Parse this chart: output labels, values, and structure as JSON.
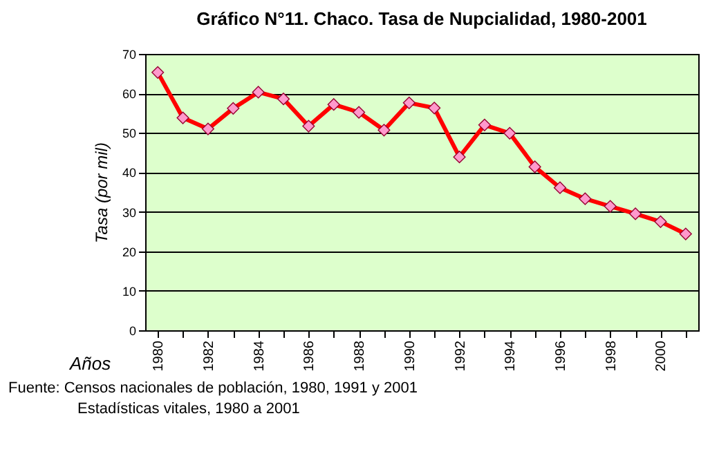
{
  "chart_data": {
    "type": "line",
    "title": "Gráfico N°11. Chaco. Tasa de Nupcialidad, 1980-2001",
    "xlabel": "Años",
    "ylabel": "Tasa (por mil)",
    "categories": [
      "1980",
      null,
      "1982",
      null,
      "1984",
      null,
      "1986",
      null,
      "1988",
      null,
      "1990",
      null,
      "1992",
      null,
      "1994",
      null,
      "1996",
      null,
      "1998",
      null,
      "2000",
      null
    ],
    "series": [
      {
        "color": "#ff0000",
        "values": [
          65.3,
          53.8,
          51,
          56.2,
          60.3,
          58.6,
          51.7,
          57.2,
          55.2,
          50.7,
          57.6,
          56.3,
          43.9,
          52,
          49.9,
          41.4,
          36.1,
          33.3,
          31.4,
          29.5,
          27.5,
          24.4
        ]
      }
    ],
    "ylim": [
      0,
      70
    ],
    "yticks": [
      0,
      10,
      20,
      30,
      40,
      50,
      60,
      70
    ],
    "grid": "y",
    "marker": "diamond",
    "line_style": "solid",
    "annotations": [
      "Fuente: Censos nacionales de población, 1980, 1991 y  2001",
      "Estadísticas vitales, 1980 a 2001"
    ]
  }
}
